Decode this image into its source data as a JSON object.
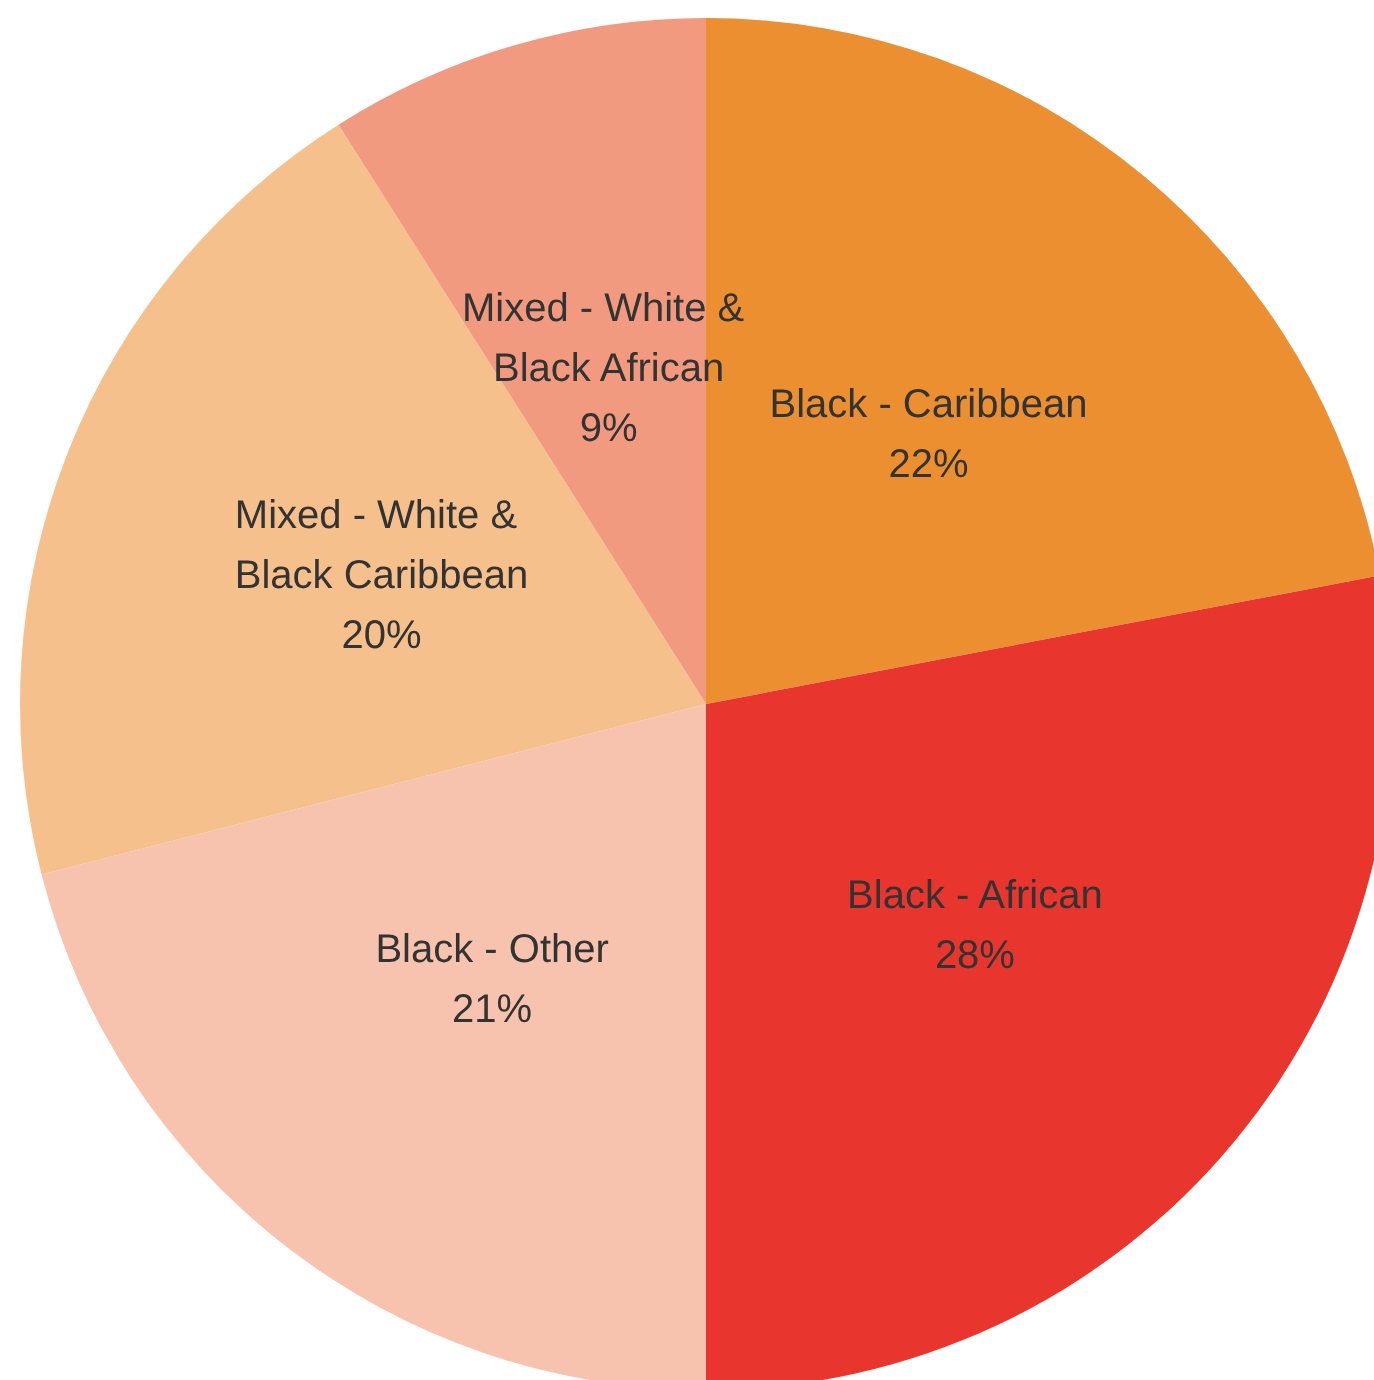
{
  "chart_data": {
    "type": "pie",
    "categories": [
      "Black - Caribbean",
      "Black - African",
      "Black - Other",
      "Mixed - White & Black Caribbean",
      "Mixed - White & Black African"
    ],
    "values": [
      22,
      28,
      21,
      20,
      9
    ],
    "colors": [
      "#ec8f31",
      "#e8362f",
      "#f7c2ae",
      "#f6c08c",
      "#f29a7f"
    ],
    "value_labels": [
      "22%",
      "28%",
      "21%",
      "20%",
      "9%"
    ],
    "legend": false
  }
}
